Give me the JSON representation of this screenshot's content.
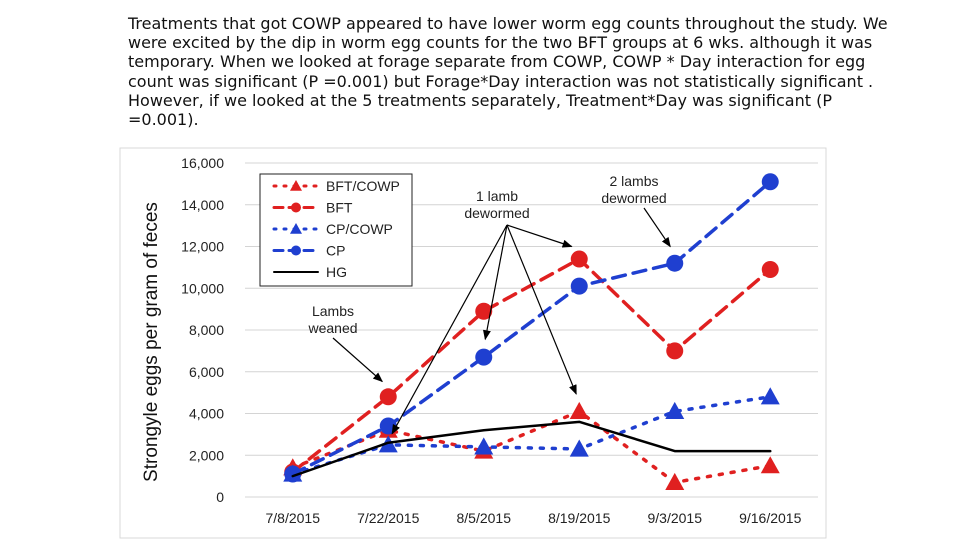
{
  "caption": "Treatments that got COWP appeared to have lower worm egg counts throughout the study. We were excited by the dip in worm egg counts for the two BFT groups at 6 wks. although it was temporary. When we looked at forage separate from COWP, COWP * Day interaction for egg count was significant (P =0.001) but Forage*Day interaction was not statistically significant . However, if we looked at the 5 treatments separately, Treatment*Day was significant (P =0.001).",
  "chart_data": {
    "type": "line",
    "ylabel": "Strongyle eggs per gram of feces",
    "xlabel": "",
    "categories": [
      "7/8/2015",
      "7/22/2015",
      "8/5/2015",
      "8/19/2015",
      "9/3/2015",
      "9/16/2015"
    ],
    "ylim": [
      0,
      16000
    ],
    "yticks": [
      0,
      2000,
      4000,
      6000,
      8000,
      10000,
      12000,
      14000,
      16000
    ],
    "ytick_labels": [
      "0",
      "2,000",
      "4,000",
      "6,000",
      "8,000",
      "10,000",
      "12,000",
      "14,000",
      "16,000"
    ],
    "legend_position": "top-left",
    "series": [
      {
        "name": "BFT/COWP",
        "color": "#e02020",
        "marker": "triangle",
        "dash": "dot",
        "values": [
          1400,
          3200,
          2200,
          4100,
          700,
          1500
        ]
      },
      {
        "name": "BFT",
        "color": "#e02020",
        "marker": "circle",
        "dash": "dash",
        "values": [
          1200,
          4800,
          8900,
          11400,
          7000,
          10900
        ]
      },
      {
        "name": "CP/COWP",
        "color": "#1f3fd0",
        "marker": "triangle",
        "dash": "dot",
        "values": [
          1100,
          2500,
          2400,
          2300,
          4100,
          4800
        ]
      },
      {
        "name": "CP",
        "color": "#1f3fd0",
        "marker": "circle",
        "dash": "dash",
        "values": [
          1100,
          3400,
          6700,
          10100,
          11200,
          15100
        ]
      },
      {
        "name": "HG",
        "color": "#000000",
        "marker": "none",
        "dash": "solid",
        "values": [
          1000,
          2600,
          3200,
          3600,
          2200,
          2200
        ]
      }
    ],
    "annotations": [
      {
        "text": "Lambs\nweaned",
        "points_to": {
          "category": "7/22/2015",
          "value": 4800
        }
      },
      {
        "text": "1 lamb\ndewormed",
        "points_to": [
          {
            "category": "7/22/2015",
            "value": 2600
          },
          {
            "category": "8/5/2015",
            "value": 6700
          },
          {
            "category": "8/19/2015",
            "value": 11400
          },
          {
            "category": "8/19/2015",
            "value": 4100
          }
        ]
      },
      {
        "text": "2 lambs\ndewormed",
        "points_to": {
          "category": "9/3/2015",
          "value": 11200
        }
      }
    ]
  }
}
